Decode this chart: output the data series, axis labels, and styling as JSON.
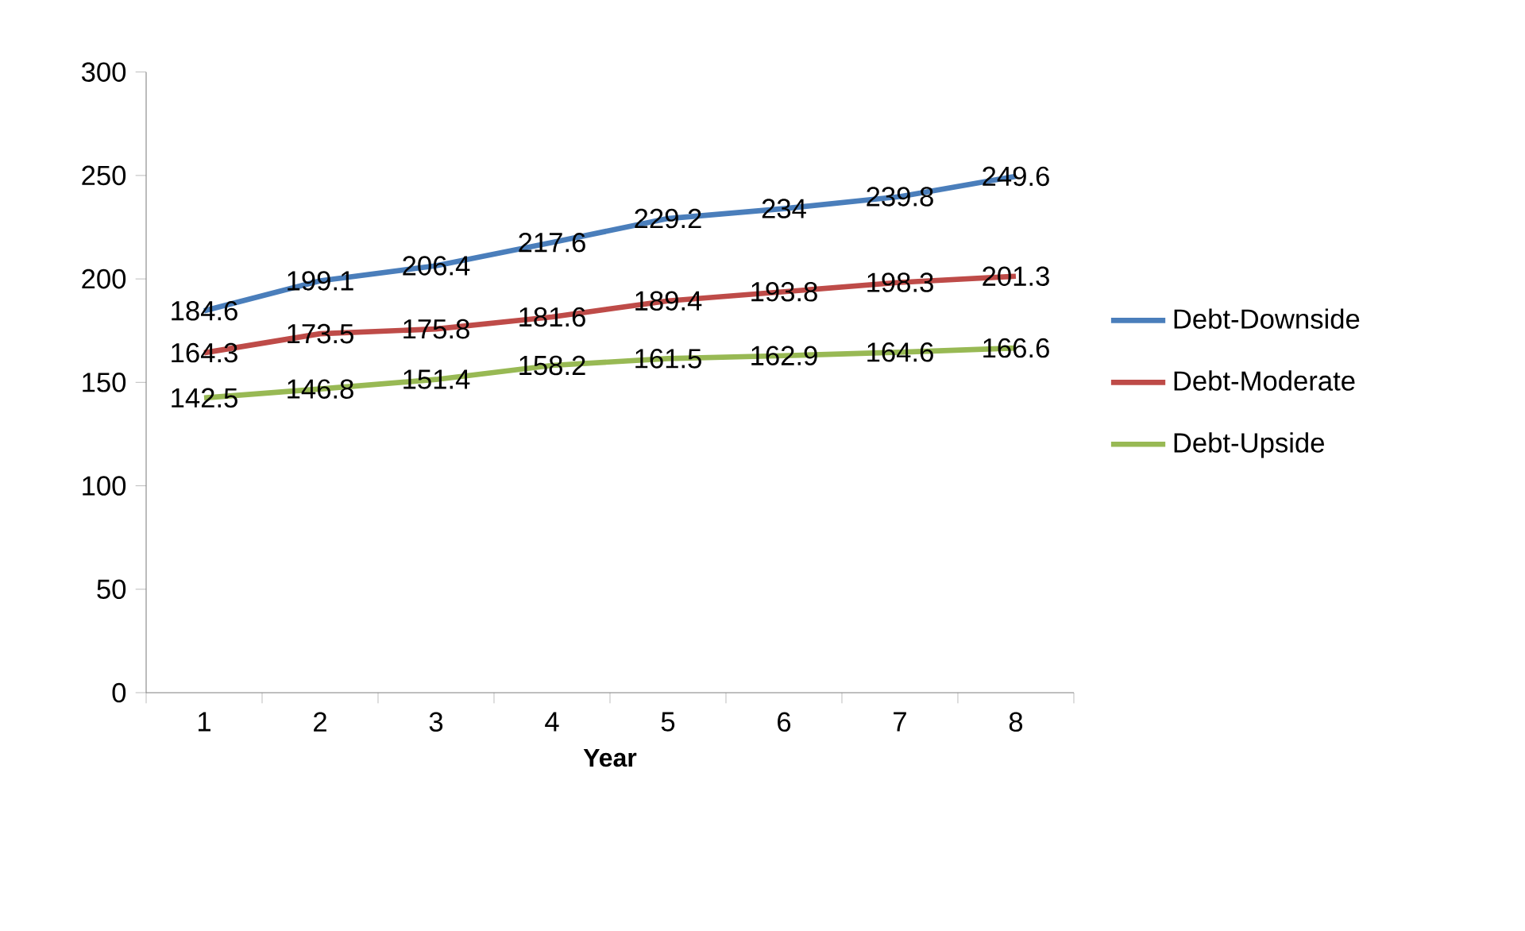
{
  "chart_data": {
    "type": "line",
    "xlabel": "Year",
    "categories": [
      "1",
      "2",
      "3",
      "4",
      "5",
      "6",
      "7",
      "8"
    ],
    "series": [
      {
        "name": "Debt-Downside",
        "color": "#4a7ebb",
        "values": [
          184.6,
          199.1,
          206.4,
          217.6,
          229.2,
          234,
          239.8,
          249.6
        ]
      },
      {
        "name": "Debt-Moderate",
        "color": "#be4b48",
        "values": [
          164.3,
          173.5,
          175.8,
          181.6,
          189.4,
          193.8,
          198.3,
          201.3
        ]
      },
      {
        "name": "Debt-Upside",
        "color": "#98b954",
        "values": [
          142.5,
          146.8,
          151.4,
          158.2,
          161.5,
          162.9,
          164.6,
          166.6
        ]
      }
    ],
    "ylim": [
      0,
      300
    ],
    "yticks": [
      0,
      50,
      100,
      150,
      200,
      250,
      300
    ],
    "data_labels": true,
    "legend": "right"
  }
}
